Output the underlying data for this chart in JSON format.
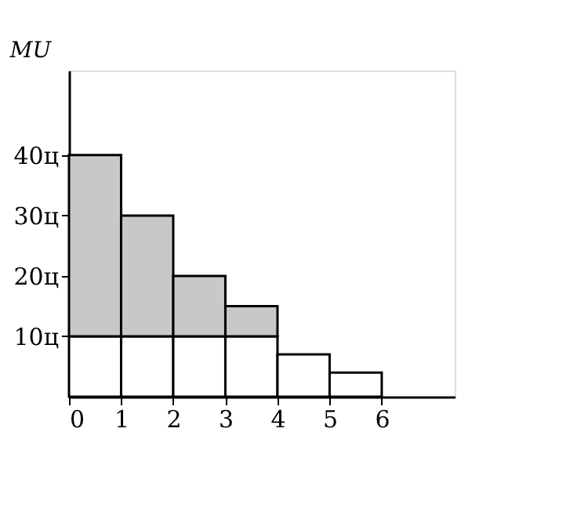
{
  "chart_data": {
    "type": "bar",
    "ylabel": "MU",
    "stacked": true,
    "x": [
      0.5,
      1.5,
      2.5,
      3.5,
      4.5,
      5.5
    ],
    "series": [
      {
        "color": "#ffffff",
        "values": [
          10,
          10,
          10,
          10,
          7,
          4
        ]
      },
      {
        "color": "#c8c8c8",
        "values": [
          30,
          20,
          10,
          5,
          null,
          null
        ]
      }
    ],
    "xlim": [
      0,
      7.4
    ],
    "xticks": [
      0,
      1,
      2,
      3,
      4,
      5,
      6
    ],
    "ylim": [
      0,
      54
    ],
    "yticks": [
      {
        "value": 10,
        "label": "10ц"
      },
      {
        "value": 20,
        "label": "20ц"
      },
      {
        "value": 30,
        "label": "30ц"
      },
      {
        "value": 40,
        "label": "40ц"
      }
    ],
    "grid": false,
    "legend": false
  }
}
